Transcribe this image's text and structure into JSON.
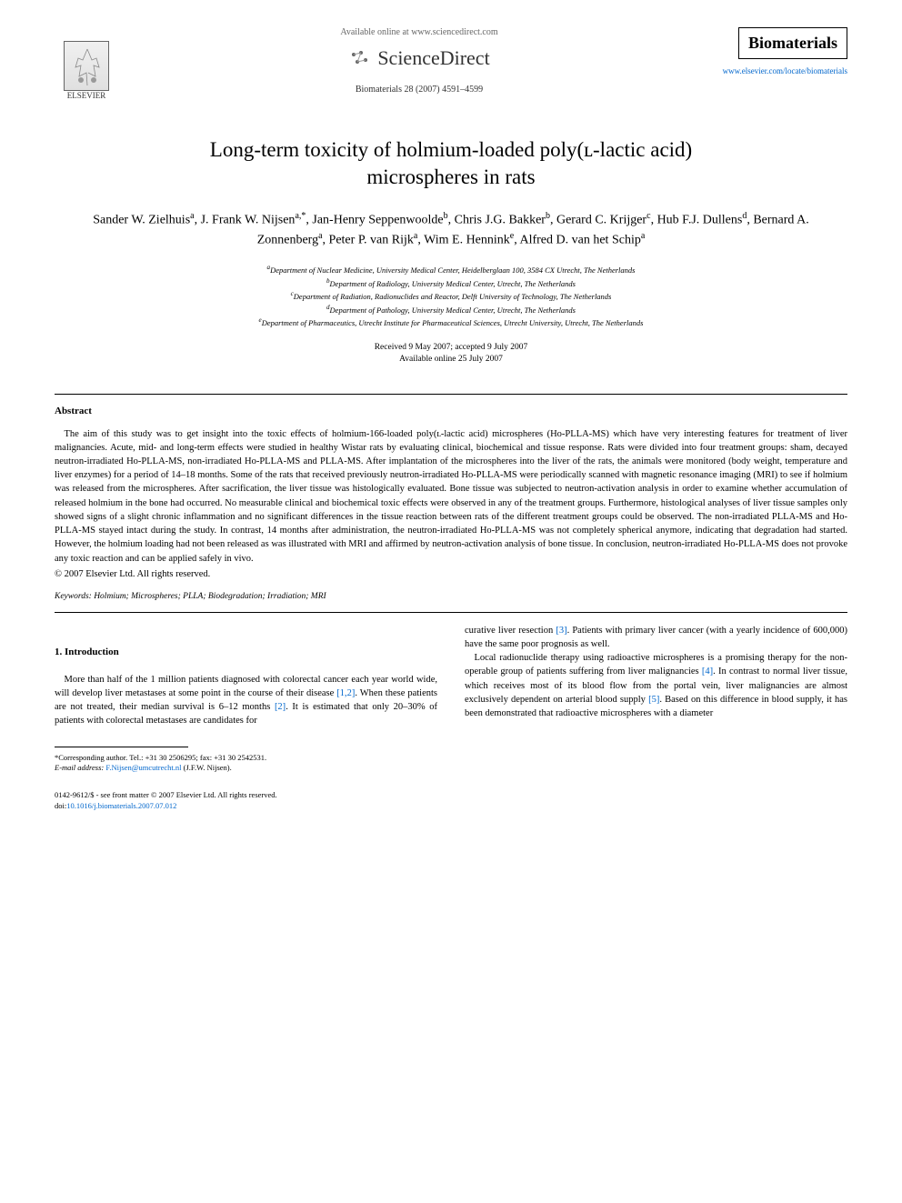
{
  "header": {
    "available_online": "Available online at www.sciencedirect.com",
    "sciencedirect": "ScienceDirect",
    "citation": "Biomaterials 28 (2007) 4591–4599",
    "elsevier_label": "ELSEVIER",
    "journal_name": "Biomaterials",
    "journal_url": "www.elsevier.com/locate/biomaterials"
  },
  "title_line1": "Long-term toxicity of holmium-loaded poly(ʟ-lactic acid)",
  "title_line2": "microspheres in rats",
  "authors_html": "Sander W. Zielhuis<sup>a</sup>, J. Frank W. Nijsen<sup>a,*</sup>, Jan-Henry Seppenwoolde<sup>b</sup>, Chris J.G. Bakker<sup>b</sup>, Gerard C. Krijger<sup>c</sup>, Hub F.J. Dullens<sup>d</sup>, Bernard A. Zonnenberg<sup>a</sup>, Peter P. van Rijk<sup>a</sup>, Wim E. Hennink<sup>e</sup>, Alfred D. van het Schip<sup>a</sup>",
  "affiliations": {
    "a": "Department of Nuclear Medicine, University Medical Center, Heidelberglaan 100, 3584 CX Utrecht, The Netherlands",
    "b": "Department of Radiology, University Medical Center, Utrecht, The Netherlands",
    "c": "Department of Radiation, Radionuclides and Reactor, Delft University of Technology, The Netherlands",
    "d": "Department of Pathology, University Medical Center, Utrecht, The Netherlands",
    "e": "Department of Pharmaceutics, Utrecht Institute for Pharmaceutical Sciences, Utrecht University, Utrecht, The Netherlands"
  },
  "dates": {
    "received": "Received 9 May 2007; accepted 9 July 2007",
    "available": "Available online 25 July 2007"
  },
  "abstract": {
    "heading": "Abstract",
    "body": "The aim of this study was to get insight into the toxic effects of holmium-166-loaded poly(ʟ-lactic acid) microspheres (Ho-PLLA-MS) which have very interesting features for treatment of liver malignancies. Acute, mid- and long-term effects were studied in healthy Wistar rats by evaluating clinical, biochemical and tissue response. Rats were divided into four treatment groups: sham, decayed neutron-irradiated Ho-PLLA-MS, non-irradiated Ho-PLLA-MS and PLLA-MS. After implantation of the microspheres into the liver of the rats, the animals were monitored (body weight, temperature and liver enzymes) for a period of 14–18 months. Some of the rats that received previously neutron-irradiated Ho-PLLA-MS were periodically scanned with magnetic resonance imaging (MRI) to see if holmium was released from the microspheres. After sacrification, the liver tissue was histologically evaluated. Bone tissue was subjected to neutron-activation analysis in order to examine whether accumulation of released holmium in the bone had occurred. No measurable clinical and biochemical toxic effects were observed in any of the treatment groups. Furthermore, histological analyses of liver tissue samples only showed signs of a slight chronic inflammation and no significant differences in the tissue reaction between rats of the different treatment groups could be observed. The non-irradiated PLLA-MS and Ho-PLLA-MS stayed intact during the study. In contrast, 14 months after administration, the neutron-irradiated Ho-PLLA-MS was not completely spherical anymore, indicating that degradation had started. However, the holmium loading had not been released as was illustrated with MRI and affirmed by neutron-activation analysis of bone tissue. In conclusion, neutron-irradiated Ho-PLLA-MS does not provoke any toxic reaction and can be applied safely in vivo.",
    "copyright": "© 2007 Elsevier Ltd. All rights reserved."
  },
  "keywords": {
    "label": "Keywords:",
    "value": "Holmium; Microspheres; PLLA; Biodegradation; Irradiation; MRI"
  },
  "intro": {
    "heading": "1. Introduction",
    "col1_p1_a": "More than half of the 1 million patients diagnosed with colorectal cancer each year world wide, will develop liver metastases at some point in the course of their disease ",
    "col1_ref12": "[1,2]",
    "col1_p1_b": ". When these patients are not treated, their median survival is 6–12 months ",
    "col1_ref2": "[2]",
    "col1_p1_c": ". It is estimated that only 20–30% of patients with colorectal metastases are candidates for",
    "col2_p1_a": "curative liver resection ",
    "col2_ref3": "[3]",
    "col2_p1_b": ". Patients with primary liver cancer (with a yearly incidence of 600,000) have the same poor prognosis as well.",
    "col2_p2_a": "Local radionuclide therapy using radioactive microspheres is a promising therapy for the non-operable group of patients suffering from liver malignancies ",
    "col2_ref4": "[4]",
    "col2_p2_b": ". In contrast to normal liver tissue, which receives most of its blood flow from the portal vein, liver malignancies are almost exclusively dependent on arterial blood supply ",
    "col2_ref5": "[5]",
    "col2_p2_c": ". Based on this difference in blood supply, it has been demonstrated that radioactive microspheres with a diameter"
  },
  "footnote": {
    "corresponding": "*Corresponding author. Tel.: +31 30 2506295; fax: +31 30 2542531.",
    "email_label": "E-mail address:",
    "email": "F.Nijsen@umcutrecht.nl",
    "email_name": "(J.F.W. Nijsen)."
  },
  "footer": {
    "issn": "0142-9612/$ - see front matter © 2007 Elsevier Ltd. All rights reserved.",
    "doi_label": "doi:",
    "doi": "10.1016/j.biomaterials.2007.07.012"
  },
  "colors": {
    "link": "#0066cc",
    "text": "#000000",
    "background": "#ffffff"
  }
}
